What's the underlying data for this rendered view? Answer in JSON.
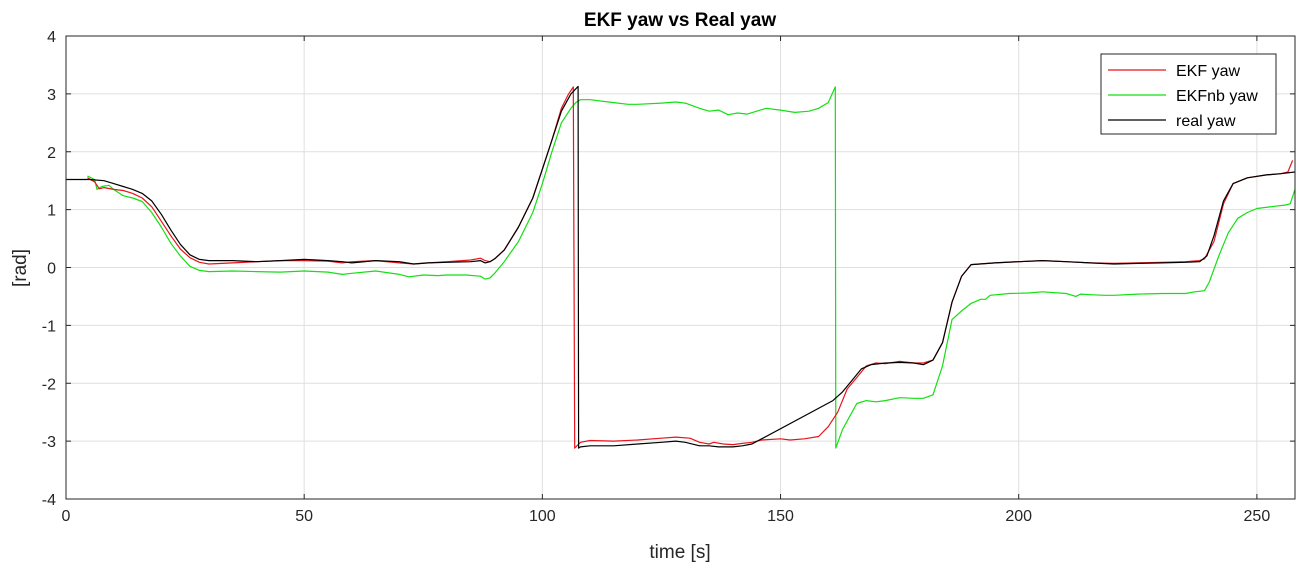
{
  "chart_data": {
    "type": "line",
    "title": "EKF yaw vs Real yaw",
    "xlabel": "time [s]",
    "ylabel": "[rad]",
    "xlim": [
      0,
      258
    ],
    "ylim": [
      -4,
      4
    ],
    "xticks": [
      0,
      50,
      100,
      150,
      200,
      250
    ],
    "yticks": [
      -4,
      -3,
      -2,
      -1,
      0,
      1,
      2,
      3,
      4
    ],
    "grid": true,
    "legend_position": "top-right",
    "series": [
      {
        "name": "EKF yaw",
        "color": "#e8141c",
        "points": [
          [
            4.5,
            1.55
          ],
          [
            6,
            1.48
          ],
          [
            7,
            1.36
          ],
          [
            8,
            1.38
          ],
          [
            10,
            1.35
          ],
          [
            12,
            1.33
          ],
          [
            14,
            1.28
          ],
          [
            16,
            1.2
          ],
          [
            18,
            1.05
          ],
          [
            20,
            0.8
          ],
          [
            22,
            0.55
          ],
          [
            24,
            0.32
          ],
          [
            26,
            0.17
          ],
          [
            28,
            0.09
          ],
          [
            30,
            0.06
          ],
          [
            35,
            0.08
          ],
          [
            40,
            0.1
          ],
          [
            45,
            0.12
          ],
          [
            50,
            0.12
          ],
          [
            55,
            0.11
          ],
          [
            58,
            0.08
          ],
          [
            60,
            0.1
          ],
          [
            65,
            0.12
          ],
          [
            70,
            0.08
          ],
          [
            73,
            0.06
          ],
          [
            76,
            0.08
          ],
          [
            80,
            0.1
          ],
          [
            85,
            0.13
          ],
          [
            87,
            0.16
          ],
          [
            88,
            0.12
          ],
          [
            89,
            0.1
          ],
          [
            90,
            0.15
          ],
          [
            92,
            0.3
          ],
          [
            95,
            0.7
          ],
          [
            98,
            1.2
          ],
          [
            100,
            1.7
          ],
          [
            102,
            2.2
          ],
          [
            104,
            2.75
          ],
          [
            105.5,
            3.0
          ],
          [
            106.5,
            3.12
          ],
          [
            106.8,
            -3.12
          ],
          [
            108,
            -3.02
          ],
          [
            110,
            -2.99
          ],
          [
            115,
            -3.0
          ],
          [
            120,
            -2.98
          ],
          [
            125,
            -2.95
          ],
          [
            128,
            -2.93
          ],
          [
            131,
            -2.95
          ],
          [
            133,
            -3.02
          ],
          [
            135,
            -3.05
          ],
          [
            136,
            -3.02
          ],
          [
            138,
            -3.05
          ],
          [
            140,
            -3.06
          ],
          [
            142,
            -3.04
          ],
          [
            144,
            -3.02
          ],
          [
            146,
            -2.98
          ],
          [
            150,
            -2.96
          ],
          [
            152,
            -2.98
          ],
          [
            155,
            -2.96
          ],
          [
            158,
            -2.92
          ],
          [
            160,
            -2.75
          ],
          [
            162,
            -2.5
          ],
          [
            164,
            -2.1
          ],
          [
            166,
            -1.9
          ],
          [
            168,
            -1.7
          ],
          [
            170,
            -1.65
          ],
          [
            172,
            -1.66
          ],
          [
            175,
            -1.62
          ],
          [
            178,
            -1.65
          ],
          [
            180,
            -1.65
          ],
          [
            182,
            -1.6
          ],
          [
            184,
            -1.3
          ],
          [
            186,
            -0.6
          ],
          [
            188,
            -0.15
          ],
          [
            190,
            0.05
          ],
          [
            195,
            0.08
          ],
          [
            200,
            0.1
          ],
          [
            205,
            0.12
          ],
          [
            210,
            0.1
          ],
          [
            215,
            0.08
          ],
          [
            220,
            0.07
          ],
          [
            225,
            0.08
          ],
          [
            230,
            0.09
          ],
          [
            235,
            0.1
          ],
          [
            238,
            0.12
          ],
          [
            239,
            0.15
          ],
          [
            241,
            0.45
          ],
          [
            243,
            1.1
          ],
          [
            245,
            1.45
          ],
          [
            248,
            1.55
          ],
          [
            252,
            1.6
          ],
          [
            255,
            1.62
          ],
          [
            256.5,
            1.65
          ],
          [
            257.5,
            1.85
          ]
        ]
      },
      {
        "name": "EKFnb yaw",
        "color": "#12e012",
        "points": [
          [
            4.5,
            1.58
          ],
          [
            6,
            1.52
          ],
          [
            6.5,
            1.35
          ],
          [
            7.5,
            1.4
          ],
          [
            9,
            1.42
          ],
          [
            10,
            1.35
          ],
          [
            12,
            1.24
          ],
          [
            14,
            1.2
          ],
          [
            16,
            1.14
          ],
          [
            18,
            0.95
          ],
          [
            20,
            0.7
          ],
          [
            22,
            0.42
          ],
          [
            24,
            0.2
          ],
          [
            26,
            0.02
          ],
          [
            28,
            -0.05
          ],
          [
            30,
            -0.07
          ],
          [
            35,
            -0.06
          ],
          [
            40,
            -0.07
          ],
          [
            45,
            -0.08
          ],
          [
            50,
            -0.06
          ],
          [
            55,
            -0.08
          ],
          [
            58,
            -0.12
          ],
          [
            60,
            -0.1
          ],
          [
            65,
            -0.06
          ],
          [
            70,
            -0.12
          ],
          [
            72,
            -0.16
          ],
          [
            75,
            -0.13
          ],
          [
            78,
            -0.14
          ],
          [
            80,
            -0.13
          ],
          [
            84,
            -0.13
          ],
          [
            87,
            -0.15
          ],
          [
            88,
            -0.2
          ],
          [
            89,
            -0.18
          ],
          [
            90,
            -0.1
          ],
          [
            92,
            0.1
          ],
          [
            95,
            0.45
          ],
          [
            98,
            0.95
          ],
          [
            100,
            1.45
          ],
          [
            102,
            2.0
          ],
          [
            104,
            2.5
          ],
          [
            106,
            2.75
          ],
          [
            107,
            2.85
          ],
          [
            108,
            2.9
          ],
          [
            110,
            2.9
          ],
          [
            115,
            2.85
          ],
          [
            118,
            2.82
          ],
          [
            120,
            2.82
          ],
          [
            125,
            2.84
          ],
          [
            128,
            2.86
          ],
          [
            130,
            2.84
          ],
          [
            133,
            2.75
          ],
          [
            135,
            2.7
          ],
          [
            137,
            2.72
          ],
          [
            139,
            2.64
          ],
          [
            141,
            2.67
          ],
          [
            143,
            2.65
          ],
          [
            145,
            2.7
          ],
          [
            147,
            2.75
          ],
          [
            150,
            2.72
          ],
          [
            153,
            2.68
          ],
          [
            156,
            2.7
          ],
          [
            158,
            2.75
          ],
          [
            160,
            2.85
          ],
          [
            161.5,
            3.12
          ],
          [
            161.6,
            -3.12
          ],
          [
            163,
            -2.8
          ],
          [
            165,
            -2.5
          ],
          [
            166,
            -2.35
          ],
          [
            168,
            -2.3
          ],
          [
            170,
            -2.32
          ],
          [
            172,
            -2.3
          ],
          [
            175,
            -2.25
          ],
          [
            178,
            -2.26
          ],
          [
            180,
            -2.26
          ],
          [
            182,
            -2.2
          ],
          [
            184,
            -1.7
          ],
          [
            186,
            -0.9
          ],
          [
            188,
            -0.75
          ],
          [
            190,
            -0.62
          ],
          [
            192,
            -0.55
          ],
          [
            193,
            -0.55
          ],
          [
            194,
            -0.48
          ],
          [
            198,
            -0.45
          ],
          [
            202,
            -0.44
          ],
          [
            205,
            -0.42
          ],
          [
            210,
            -0.45
          ],
          [
            212,
            -0.5
          ],
          [
            213,
            -0.46
          ],
          [
            215,
            -0.47
          ],
          [
            218,
            -0.48
          ],
          [
            220,
            -0.48
          ],
          [
            225,
            -0.46
          ],
          [
            230,
            -0.45
          ],
          [
            235,
            -0.45
          ],
          [
            237,
            -0.42
          ],
          [
            239,
            -0.4
          ],
          [
            240,
            -0.25
          ],
          [
            242,
            0.2
          ],
          [
            244,
            0.6
          ],
          [
            246,
            0.85
          ],
          [
            248,
            0.95
          ],
          [
            250,
            1.02
          ],
          [
            253,
            1.05
          ],
          [
            256,
            1.08
          ],
          [
            257,
            1.1
          ],
          [
            258,
            1.35
          ]
        ]
      },
      {
        "name": "real yaw",
        "color": "#000000",
        "points": [
          [
            0,
            1.52
          ],
          [
            5,
            1.52
          ],
          [
            8,
            1.5
          ],
          [
            10,
            1.45
          ],
          [
            12,
            1.4
          ],
          [
            14,
            1.35
          ],
          [
            16,
            1.28
          ],
          [
            18,
            1.15
          ],
          [
            20,
            0.92
          ],
          [
            22,
            0.65
          ],
          [
            24,
            0.4
          ],
          [
            26,
            0.22
          ],
          [
            28,
            0.14
          ],
          [
            30,
            0.12
          ],
          [
            35,
            0.12
          ],
          [
            40,
            0.1
          ],
          [
            45,
            0.12
          ],
          [
            50,
            0.14
          ],
          [
            55,
            0.12
          ],
          [
            58,
            0.1
          ],
          [
            60,
            0.08
          ],
          [
            65,
            0.12
          ],
          [
            70,
            0.1
          ],
          [
            73,
            0.06
          ],
          [
            76,
            0.08
          ],
          [
            80,
            0.09
          ],
          [
            85,
            0.1
          ],
          [
            87,
            0.12
          ],
          [
            88,
            0.08
          ],
          [
            89,
            0.1
          ],
          [
            90,
            0.15
          ],
          [
            92,
            0.3
          ],
          [
            95,
            0.7
          ],
          [
            98,
            1.2
          ],
          [
            100,
            1.7
          ],
          [
            102,
            2.2
          ],
          [
            104,
            2.7
          ],
          [
            106,
            3.0
          ],
          [
            107.5,
            3.13
          ],
          [
            107.6,
            -3.12
          ],
          [
            108,
            -3.1
          ],
          [
            110,
            -3.08
          ],
          [
            115,
            -3.08
          ],
          [
            120,
            -3.05
          ],
          [
            125,
            -3.02
          ],
          [
            128,
            -3.0
          ],
          [
            130,
            -3.02
          ],
          [
            133,
            -3.08
          ],
          [
            135,
            -3.08
          ],
          [
            137,
            -3.1
          ],
          [
            140,
            -3.1
          ],
          [
            142,
            -3.08
          ],
          [
            144,
            -3.05
          ],
          [
            161,
            -2.3
          ],
          [
            163,
            -2.15
          ],
          [
            165,
            -1.95
          ],
          [
            167,
            -1.75
          ],
          [
            169,
            -1.68
          ],
          [
            172,
            -1.65
          ],
          [
            175,
            -1.64
          ],
          [
            178,
            -1.65
          ],
          [
            180,
            -1.68
          ],
          [
            182,
            -1.6
          ],
          [
            184,
            -1.3
          ],
          [
            186,
            -0.6
          ],
          [
            188,
            -0.15
          ],
          [
            190,
            0.05
          ],
          [
            195,
            0.08
          ],
          [
            200,
            0.1
          ],
          [
            205,
            0.12
          ],
          [
            210,
            0.1
          ],
          [
            215,
            0.08
          ],
          [
            220,
            0.06
          ],
          [
            225,
            0.07
          ],
          [
            230,
            0.08
          ],
          [
            235,
            0.09
          ],
          [
            238,
            0.1
          ],
          [
            239.5,
            0.2
          ],
          [
            241,
            0.55
          ],
          [
            243,
            1.15
          ],
          [
            245,
            1.45
          ],
          [
            248,
            1.55
          ],
          [
            252,
            1.6
          ],
          [
            255,
            1.62
          ],
          [
            258,
            1.65
          ]
        ]
      }
    ]
  }
}
